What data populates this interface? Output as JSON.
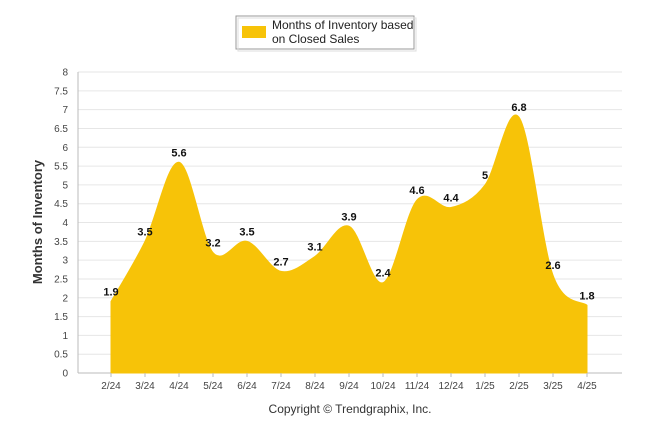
{
  "chart_data": {
    "type": "area",
    "categories": [
      "2/24",
      "3/24",
      "4/24",
      "5/24",
      "6/24",
      "7/24",
      "8/24",
      "9/24",
      "10/24",
      "11/24",
      "12/24",
      "1/25",
      "2/25",
      "3/25",
      "4/25"
    ],
    "series": [
      {
        "name": "Months of Inventory based on Closed Sales",
        "legend_lines": [
          "Months of Inventory based",
          "on Closed Sales"
        ],
        "values": [
          1.9,
          3.5,
          5.6,
          3.2,
          3.5,
          2.7,
          3.1,
          3.9,
          2.4,
          4.6,
          4.4,
          5,
          6.8,
          2.6,
          1.8
        ],
        "labels": [
          "1.9",
          "3.5",
          "5.6",
          "3.2",
          "3.5",
          "2.7",
          "3.1",
          "3.9",
          "2.4",
          "4.6",
          "4.4",
          "5",
          "6.8",
          "2.6",
          "1.8"
        ],
        "color": "#F7C308"
      }
    ],
    "ylabel": "Months of Inventory",
    "xlabel": "",
    "ylim": [
      0,
      8
    ],
    "yticks": [
      "0",
      "0.5",
      "1",
      "1.5",
      "2",
      "2.5",
      "3",
      "3.5",
      "4",
      "4.5",
      "5",
      "5.5",
      "6",
      "6.5",
      "7",
      "7.5",
      "8"
    ],
    "grid": true,
    "legend_position": "top-center"
  },
  "footer": {
    "copyright": "Copyright © Trendgraphix, Inc."
  },
  "colors": {
    "area": "#F7C308",
    "grid": "#E6E6E6",
    "axis": "#BBBBBB"
  }
}
